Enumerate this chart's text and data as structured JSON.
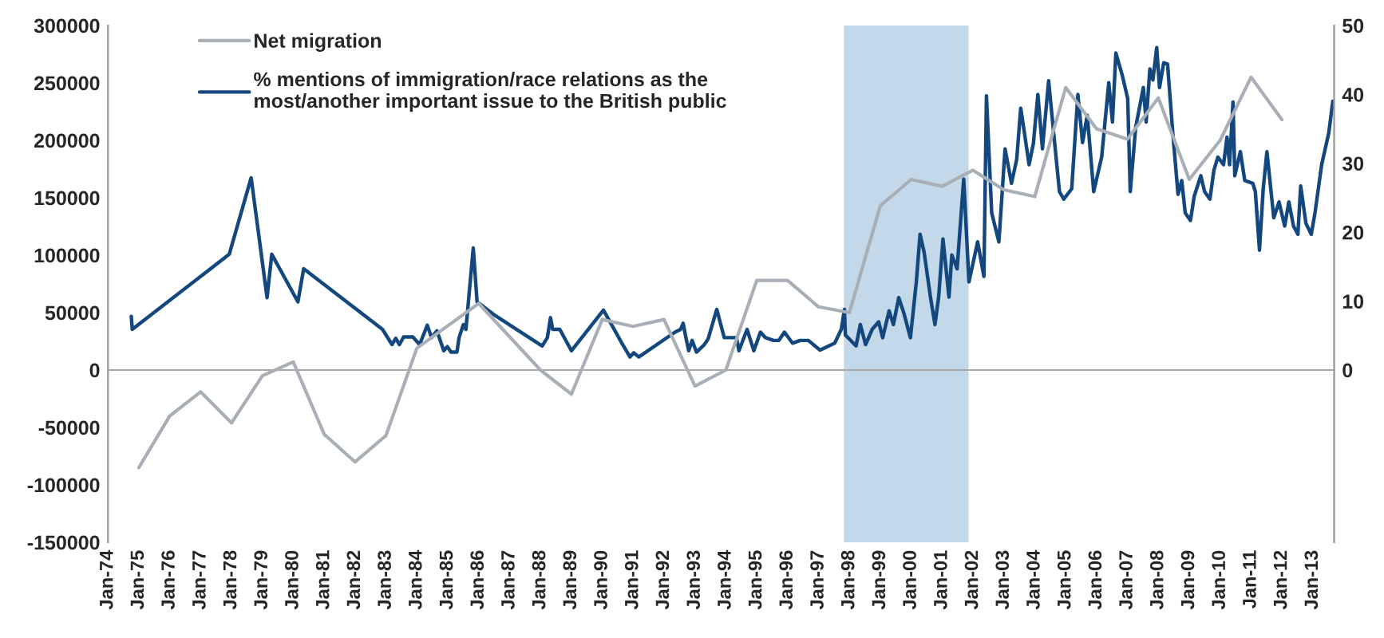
{
  "chart_data": {
    "type": "line",
    "series": [
      {
        "name": "Net migration",
        "color": "#a9afb6",
        "x": [
          "1975-01",
          "1976-01",
          "1977-01",
          "1978-01",
          "1979-01",
          "1980-01",
          "1981-01",
          "1982-01",
          "1983-01",
          "1984-01",
          "1986-01",
          "1988-01",
          "1989-01",
          "1990-01",
          "1991-01",
          "1992-01",
          "1993-01",
          "1994-01",
          "1995-01",
          "1996-01",
          "1997-01",
          "1998-01",
          "1999-01",
          "2000-01",
          "2001-01",
          "2002-01",
          "2003-01",
          "2004-01",
          "2005-01",
          "2006-01",
          "2007-01",
          "2008-01",
          "2009-01",
          "2010-01",
          "2011-01",
          "2012-01"
        ],
        "values": [
          -85000,
          -40000,
          -19000,
          -46000,
          -5000,
          7000,
          -56000,
          -80000,
          -57000,
          19000,
          58000,
          0,
          -21000,
          44000,
          38000,
          44000,
          -14000,
          0,
          78000,
          78000,
          55000,
          50000,
          143000,
          166000,
          160000,
          174000,
          157000,
          151000,
          246000,
          210000,
          201000,
          237000,
          166000,
          200000,
          255000,
          218000
        ]
      },
      {
        "name": "% mentions of immigration/race relations as the\nmost/another important issue to the British public",
        "color": "#14477e",
        "axis": "y2",
        "x": [
          "1974-10-04",
          "1974-10-15",
          "1977-12-05",
          "1978-08-21",
          "1979-02-25",
          "1979-04-22",
          "1980-02-25",
          "1980-05-03",
          "1982-11-21",
          "1983-03-13",
          "1983-04-26",
          "1983-06-09",
          "1983-07-29",
          "1983-11-14",
          "1984-02-03",
          "1984-05-03",
          "1984-06-23",
          "1984-08-25",
          "1984-11-14",
          "1984-12-27",
          "1985-02-07",
          "1985-04-19",
          "1985-05-14",
          "1985-07-04",
          "1985-08-03",
          "1985-10-29",
          "1985-12-13",
          "1986-07-04",
          "1988-01-22",
          "1988-03-23",
          "1988-04-29",
          "1988-05-25",
          "1988-08-17",
          "1989-01-01",
          "1990-01-15",
          "1990-08-21",
          "1990-11-25",
          "1991-01-08",
          "1991-03-09",
          "1992-05-10",
          "1992-07-15",
          "1992-08-14",
          "1992-09-16",
          "1992-10-19",
          "1992-11-28",
          "1993-01-19",
          "1993-04-22",
          "1993-06-05",
          "1993-09-16",
          "1993-12-13",
          "1994-02-03",
          "1994-05-07",
          "1994-06-05",
          "1994-09-09",
          "1994-11-28",
          "1995-02-14",
          "1995-04-15",
          "1995-07-19",
          "1995-09-20",
          "1995-11-25",
          "1996-02-28",
          "1996-05-28",
          "1996-09-02",
          "1997-01-19",
          "1997-07-11",
          "1997-09-27",
          "1997-11-03",
          "1997-11-14",
          "1998-03-20",
          "1998-05-10",
          "1998-07-11",
          "1998-09-27",
          "1998-12-13",
          "1999-01-29",
          "1999-04-15",
          "1999-06-05",
          "1999-08-07",
          "1999-10-08",
          "1999-12-23",
          "2000-03-02",
          "2000-04-15",
          "2000-06-02",
          "2000-08-17",
          "2000-10-08",
          "2000-11-21",
          "2001-01-11",
          "2001-03-23",
          "2001-04-26",
          "2001-06-27",
          "2001-09-13",
          "2001-11-14",
          "2002-02-25",
          "2002-05-10",
          "2002-06-09",
          "2002-08-10",
          "2002-11-03",
          "2003-01-15",
          "2003-04-01",
          "2003-06-02",
          "2003-07-19",
          "2003-08-25",
          "2003-10-26",
          "2003-12-16",
          "2004-02-07",
          "2004-04-01",
          "2004-06-13",
          "2004-08-07",
          "2004-10-19",
          "2004-12-09",
          "2005-03-13",
          "2005-05-25",
          "2005-07-19",
          "2005-09-13",
          "2005-11-28",
          "2006-03-02",
          "2006-05-25",
          "2006-07-08",
          "2006-08-17",
          "2006-10-29",
          "2007-01-04",
          "2007-02-03",
          "2007-04-08",
          "2007-07-08",
          "2007-08-10",
          "2007-09-23",
          "2007-10-29",
          "2007-12-13",
          "2008-01-15",
          "2008-03-05",
          "2008-04-19",
          "2008-06-20",
          "2008-08-21",
          "2008-10-04",
          "2008-11-14",
          "2009-01-15",
          "2009-02-28",
          "2009-05-17",
          "2009-07-01",
          "2009-09-02",
          "2009-10-19",
          "2009-12-05",
          "2010-02-10",
          "2010-03-23",
          "2010-04-22",
          "2010-06-02",
          "2010-06-23",
          "2010-08-28",
          "2010-10-19",
          "2011-01-22",
          "2011-02-21",
          "2011-04-11",
          "2011-05-25",
          "2011-07-08",
          "2011-09-27",
          "2011-11-28",
          "2012-02-03",
          "2012-03-23",
          "2012-05-17",
          "2012-07-08",
          "2012-08-10",
          "2012-10-11",
          "2012-12-13",
          "2013-01-26",
          "2013-04-15",
          "2013-07-08",
          "2013-08-25"
        ],
        "values": [
          7.8,
          5.9,
          16.8,
          27.9,
          10.5,
          16.8,
          9.9,
          14.7,
          5.9,
          3.7,
          4.6,
          3.7,
          4.8,
          4.8,
          3.7,
          6.5,
          4.7,
          5.7,
          2.8,
          3.4,
          2.6,
          2.6,
          4.7,
          6.6,
          5.9,
          17.7,
          9.9,
          8.0,
          3.5,
          4.7,
          7.6,
          5.9,
          5.9,
          2.8,
          8.7,
          3.9,
          1.9,
          2.5,
          1.9,
          5.5,
          5.9,
          6.8,
          4.7,
          2.8,
          4.3,
          2.6,
          3.7,
          4.5,
          8.8,
          4.7,
          4.7,
          4.7,
          2.8,
          5.9,
          2.8,
          5.5,
          4.7,
          4.3,
          4.3,
          5.5,
          3.9,
          4.3,
          4.3,
          2.9,
          3.9,
          5.9,
          8.8,
          5.1,
          3.5,
          6.6,
          3.7,
          5.9,
          7.0,
          4.7,
          8.6,
          6.6,
          10.5,
          8.2,
          4.7,
          12.8,
          19.7,
          17.1,
          10.5,
          6.6,
          10.6,
          19.0,
          10.6,
          16.7,
          14.7,
          27.7,
          12.8,
          18.6,
          13.6,
          39.8,
          22.8,
          18.6,
          32.1,
          27.1,
          30.6,
          38,
          35,
          29.8,
          32.9,
          40,
          32.1,
          42,
          35,
          25.9,
          24.8,
          26.3,
          40,
          33,
          37,
          25.9,
          30.9,
          41.7,
          36.0,
          46.0,
          42.9,
          39.4,
          25.9,
          35.2,
          41.0,
          36.0,
          43.7,
          42.1,
          46.8,
          41.0,
          44.6,
          44.4,
          34.4,
          25.5,
          27.5,
          22.8,
          21.7,
          25.2,
          28.2,
          25.9,
          24.8,
          29.0,
          30.9,
          29.8,
          33.8,
          29.8,
          38.9,
          28.2,
          31.7,
          27.5,
          27.1,
          25.9,
          17.4,
          26.3,
          31.7,
          22.1,
          24.4,
          20.9,
          24.4,
          20.9,
          19.7,
          26.7,
          21.3,
          19.7,
          22.8,
          29.8,
          34.4,
          39.0
        ]
      }
    ],
    "xlim": [
      "1974-01-01",
      "2013-09-10"
    ],
    "xticks": [
      {
        "value": "1974-01",
        "label": "Jan-74"
      },
      {
        "value": "1975-01",
        "label": "Jan-75"
      },
      {
        "value": "1976-01",
        "label": "Jan-76"
      },
      {
        "value": "1977-01",
        "label": "Jan-77"
      },
      {
        "value": "1978-01",
        "label": "Jan-78"
      },
      {
        "value": "1979-01",
        "label": "Jan-79"
      },
      {
        "value": "1980-01",
        "label": "Jan-80"
      },
      {
        "value": "1981-01",
        "label": "Jan-81"
      },
      {
        "value": "1982-01",
        "label": "Jan-82"
      },
      {
        "value": "1983-01",
        "label": "Jan-83"
      },
      {
        "value": "1984-01",
        "label": "Jan-84"
      },
      {
        "value": "1985-01",
        "label": "Jan-85"
      },
      {
        "value": "1986-01",
        "label": "Jan-86"
      },
      {
        "value": "1987-01",
        "label": "Jan-87"
      },
      {
        "value": "1988-01",
        "label": "Jan-88"
      },
      {
        "value": "1989-01",
        "label": "Jan-89"
      },
      {
        "value": "1990-01",
        "label": "Jan-90"
      },
      {
        "value": "1991-01",
        "label": "Jan-91"
      },
      {
        "value": "1992-01",
        "label": "Jan-92"
      },
      {
        "value": "1993-01",
        "label": "Jan-93"
      },
      {
        "value": "1994-01",
        "label": "Jan-94"
      },
      {
        "value": "1995-01",
        "label": "Jan-95"
      },
      {
        "value": "1996-01",
        "label": "Jan-96"
      },
      {
        "value": "1997-01",
        "label": "Jan-97"
      },
      {
        "value": "1998-01",
        "label": "Jan-98"
      },
      {
        "value": "1999-01",
        "label": "Jan-99"
      },
      {
        "value": "2000-01",
        "label": "Jan-00"
      },
      {
        "value": "2001-01",
        "label": "Jan-01"
      },
      {
        "value": "2002-01",
        "label": "Jan-02"
      },
      {
        "value": "2003-01",
        "label": "Jan-03"
      },
      {
        "value": "2004-01",
        "label": "Jan-04"
      },
      {
        "value": "2005-01",
        "label": "Jan-05"
      },
      {
        "value": "2006-01",
        "label": "Jan-06"
      },
      {
        "value": "2007-01",
        "label": "Jan-07"
      },
      {
        "value": "2008-01",
        "label": "Jan-08"
      },
      {
        "value": "2009-01",
        "label": "Jan-09"
      },
      {
        "value": "2010-01",
        "label": "Jan-10"
      },
      {
        "value": "2011-01",
        "label": "Jan-11"
      },
      {
        "value": "2012-01",
        "label": "Jan-12"
      },
      {
        "value": "2013-01",
        "label": "Jan-13"
      }
    ],
    "ylim": [
      -150000,
      300000
    ],
    "yticks": [
      -150000,
      -100000,
      -50000,
      0,
      50000,
      100000,
      150000,
      200000,
      250000,
      300000
    ],
    "y2lim": [
      -25,
      50
    ],
    "y2ticks": [
      0,
      10,
      20,
      30,
      40,
      50
    ],
    "bands": [
      {
        "axis": "x",
        "from": "1997-10-27",
        "to": "2001-11-10",
        "color": "#c3d9ea"
      }
    ],
    "legend": "top left",
    "marker": "none",
    "line_style": "solid"
  }
}
